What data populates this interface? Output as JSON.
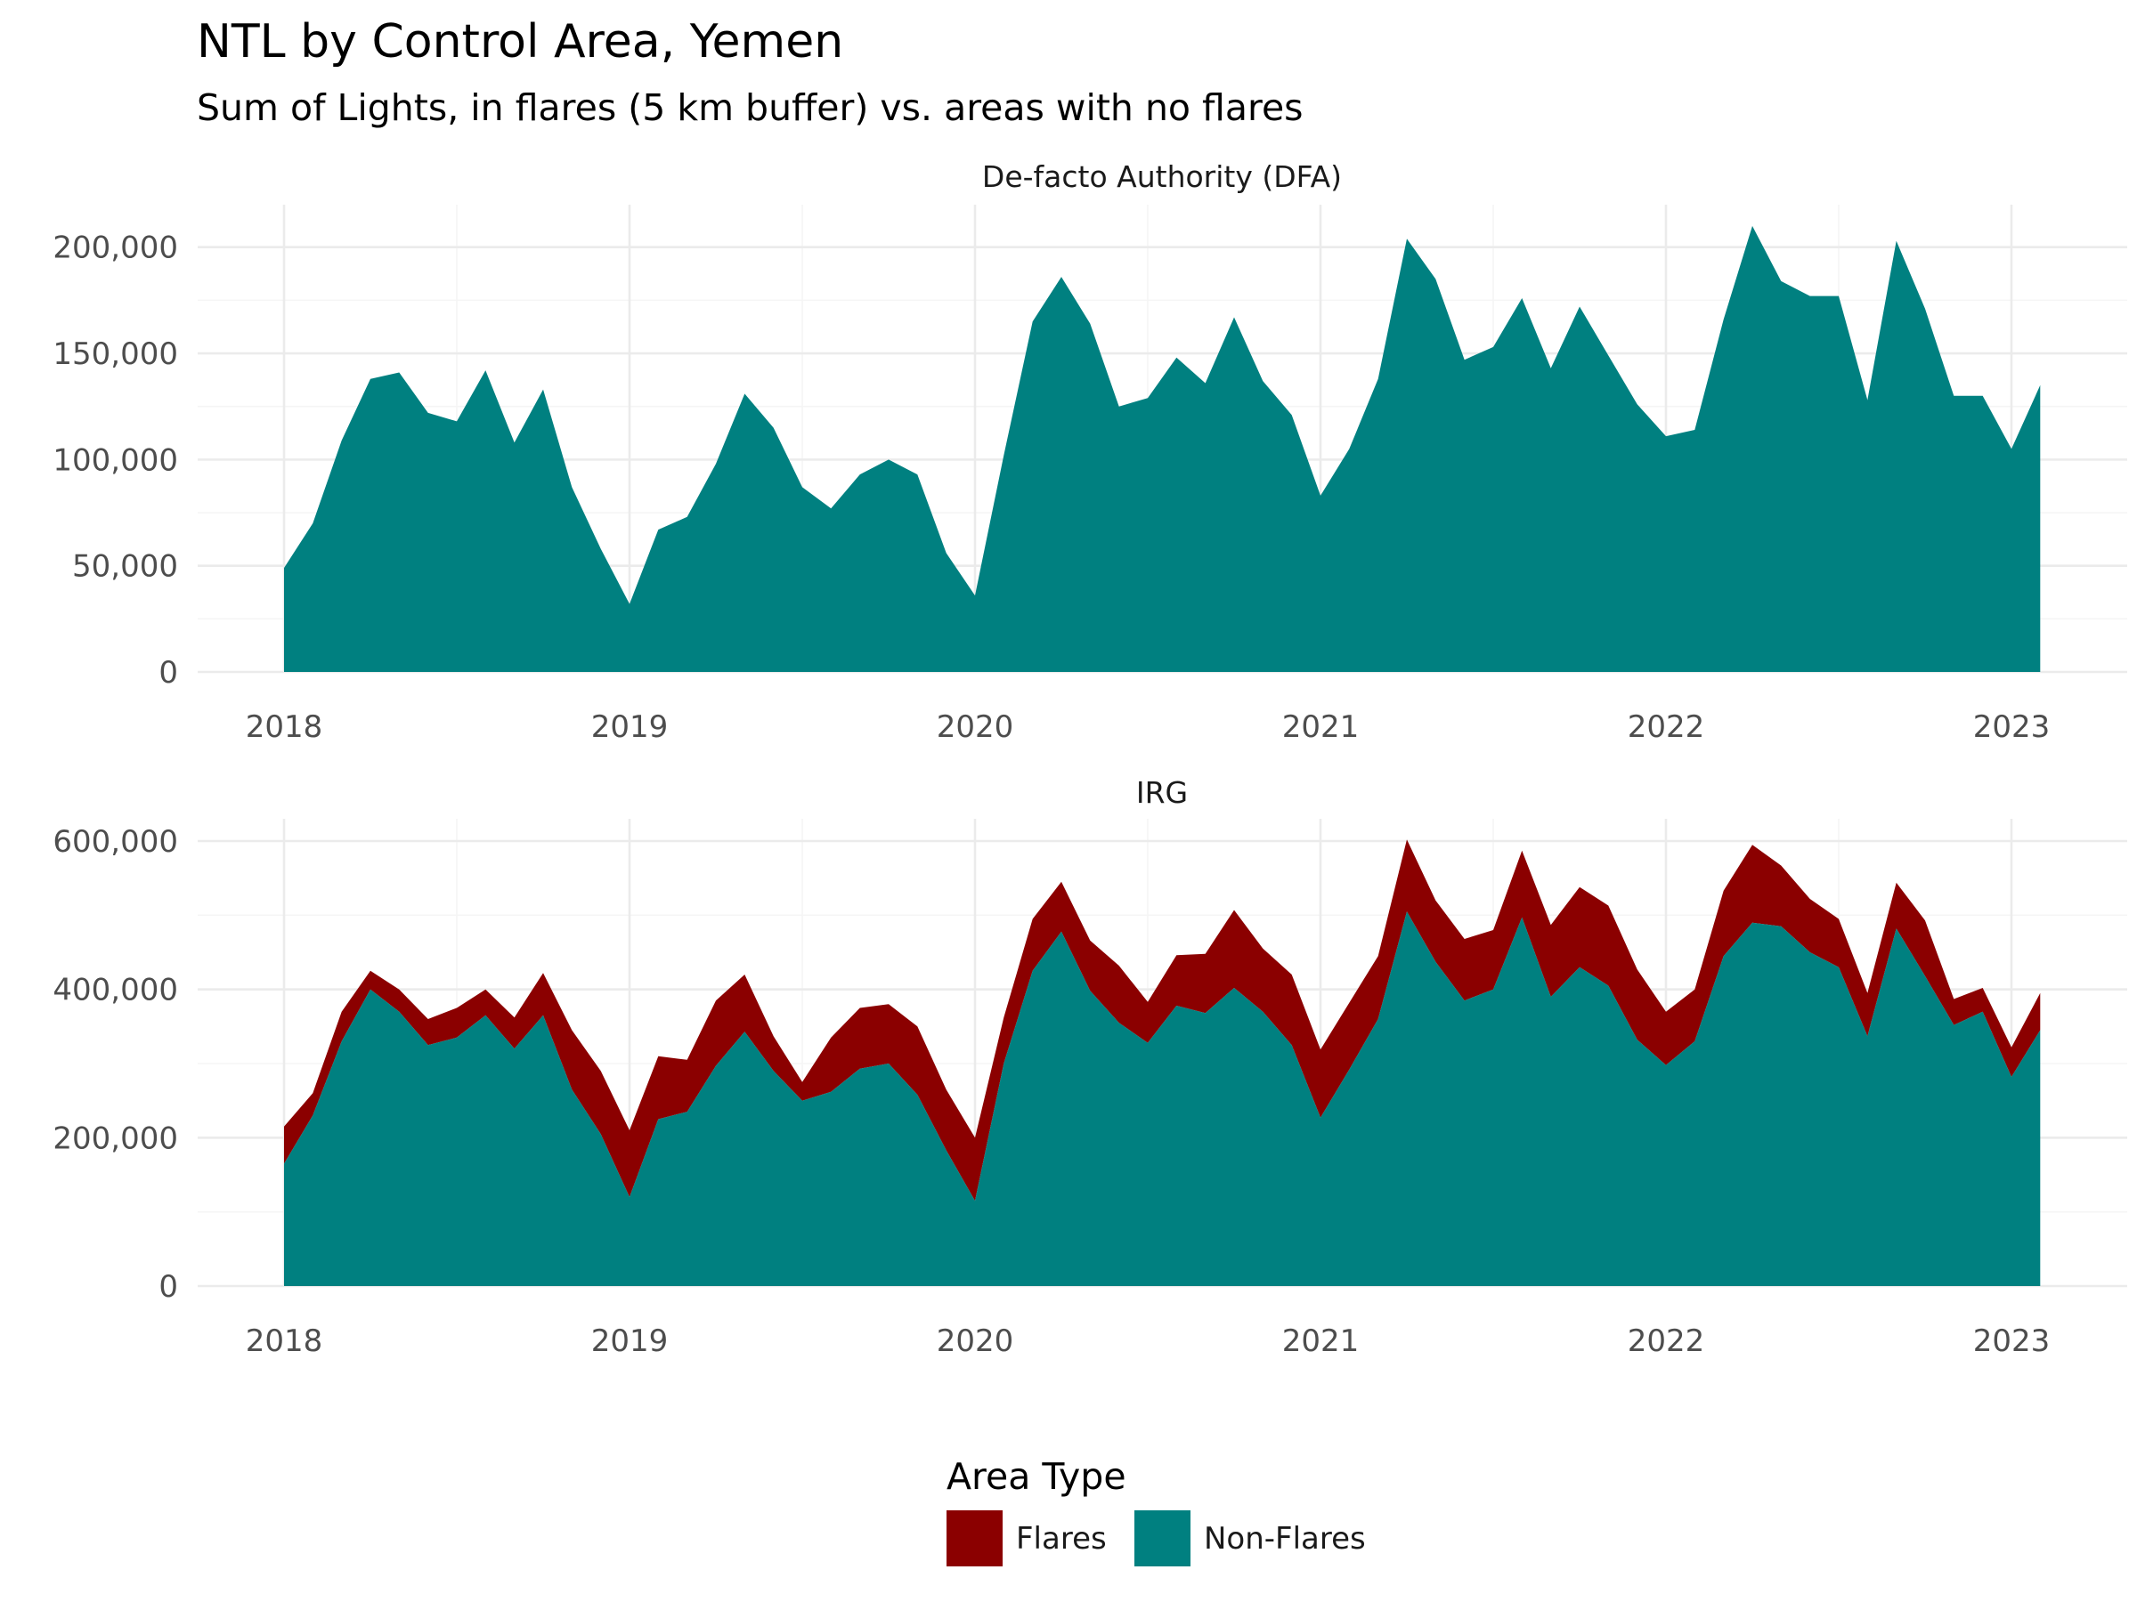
{
  "chart_data": {
    "type": "area",
    "stacked": true,
    "title": "NTL by Control Area, Yemen",
    "subtitle": "Sum of Lights, in flares (5 km buffer) vs. areas with no flares",
    "xlabel": "",
    "ylabel": "",
    "x_ticks": [
      "2018",
      "2019",
      "2020",
      "2021",
      "2022",
      "2023"
    ],
    "x_start": "2018-01",
    "legend": {
      "title": "Area Type",
      "position": "bottom",
      "entries": [
        {
          "name": "Flares",
          "color": "#8b0000"
        },
        {
          "name": "Non-Flares",
          "color": "#008080"
        }
      ]
    },
    "grid": true,
    "panels": [
      {
        "label": "De-facto Authority (DFA)",
        "ylim": [
          0,
          220000
        ],
        "y_ticks": [
          0,
          50000,
          100000,
          150000,
          200000
        ],
        "y_tick_labels": [
          "0",
          "50,000",
          "100,000",
          "150,000",
          "200,000"
        ],
        "series": [
          {
            "name": "Non-Flares",
            "color": "#008080",
            "values": [
              49000,
              70000,
              109000,
              138000,
              141000,
              122000,
              118000,
              142000,
              108000,
              133000,
              87000,
              58000,
              32000,
              67000,
              73000,
              98000,
              131000,
              115000,
              87000,
              77000,
              93000,
              100000,
              93000,
              56000,
              36000,
              102000,
              165000,
              186000,
              164000,
              125000,
              129000,
              148000,
              136000,
              167000,
              137000,
              121000,
              83000,
              105000,
              138000,
              204000,
              185000,
              147000,
              153000,
              176000,
              143000,
              172000,
              149000,
              126000,
              111000,
              114000,
              166000,
              210000,
              184000,
              177000,
              177000,
              128000,
              203000,
              171000,
              130000,
              130000,
              105000,
              135000
            ]
          },
          {
            "name": "Flares",
            "color": "#8b0000",
            "values": [
              0,
              0,
              0,
              0,
              0,
              0,
              0,
              0,
              0,
              0,
              0,
              0,
              0,
              0,
              0,
              0,
              0,
              0,
              0,
              0,
              0,
              0,
              0,
              0,
              0,
              0,
              0,
              0,
              0,
              0,
              0,
              0,
              0,
              0,
              0,
              0,
              0,
              0,
              0,
              0,
              0,
              0,
              0,
              0,
              0,
              0,
              0,
              0,
              0,
              0,
              0,
              0,
              0,
              0,
              0,
              0,
              0,
              0,
              0,
              0,
              0,
              0
            ]
          }
        ]
      },
      {
        "label": "IRG",
        "ylim": [
          0,
          630000
        ],
        "y_ticks": [
          0,
          200000,
          400000,
          600000
        ],
        "y_tick_labels": [
          "0",
          "200,000",
          "400,000",
          "600,000"
        ],
        "series": [
          {
            "name": "Non-Flares",
            "color": "#008080",
            "values": [
              165000,
              230000,
              330000,
              400000,
              370000,
              325000,
              335000,
              365000,
              320000,
              365000,
              265000,
              205000,
              120000,
              225000,
              235000,
              297000,
              343000,
              290000,
              250000,
              262000,
              293000,
              300000,
              258000,
              183000,
              115000,
              300000,
              425000,
              478000,
              398000,
              355000,
              328000,
              378000,
              368000,
              402000,
              370000,
              325000,
              227000,
              292000,
              360000,
              505000,
              437000,
              385000,
              400000,
              497000,
              390000,
              430000,
              405000,
              332000,
              298000,
              330000,
              445000,
              490000,
              485000,
              450000,
              430000,
              337000,
              482000,
              418000,
              352000,
              370000,
              282000,
              345000
            ]
          },
          {
            "name": "Flares",
            "color": "#8b0000",
            "values": [
              50000,
              30000,
              40000,
              25000,
              30000,
              35000,
              40000,
              35000,
              42000,
              57000,
              80000,
              85000,
              90000,
              85000,
              70000,
              88000,
              77000,
              47000,
              25000,
              73000,
              82000,
              80000,
              92000,
              82000,
              85000,
              62000,
              70000,
              67000,
              68000,
              77000,
              55000,
              68000,
              80000,
              105000,
              85000,
              95000,
              92000,
              90000,
              85000,
              97000,
              83000,
              83000,
              80000,
              90000,
              97000,
              108000,
              108000,
              95000,
              72000,
              70000,
              88000,
              105000,
              82000,
              72000,
              65000,
              58000,
              62000,
              75000,
              35000,
              32000,
              40000,
              50000
            ]
          }
        ]
      }
    ]
  }
}
